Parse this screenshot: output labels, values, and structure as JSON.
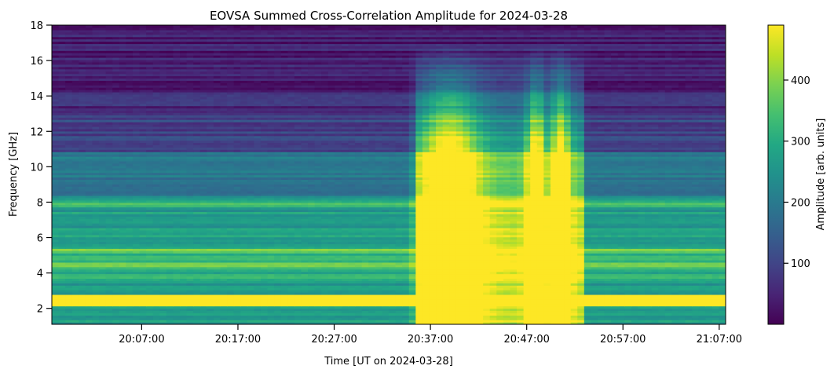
{
  "chart_data": {
    "type": "heatmap",
    "title": "EOVSA Summed Cross-Correlation Amplitude for 2024-03-28",
    "xlabel": "Time [UT on 2024-03-28]",
    "ylabel": "Frequency [GHz]",
    "x_ticks": [
      "20:07:00",
      "20:17:00",
      "20:27:00",
      "20:37:00",
      "20:47:00",
      "20:57:00",
      "21:07:00"
    ],
    "y_ticks": [
      2,
      4,
      6,
      8,
      10,
      12,
      14,
      16,
      18
    ],
    "xlim": [
      "19:57:40",
      "21:07:40"
    ],
    "ylim": [
      1.1,
      18
    ],
    "colorbar": {
      "label": "Amplitude [arb. units]",
      "ticks": [
        100,
        200,
        300,
        400
      ],
      "range": [
        0,
        490
      ],
      "colormap": "viridis"
    },
    "grid": false,
    "features": {
      "strong_bands_ghz": [
        [
          2.1,
          2.8
        ],
        [
          4.3,
          4.6
        ],
        [
          5.1,
          5.4
        ],
        [
          7.7,
          8.0
        ]
      ],
      "flare_start": "20:35:30",
      "flare_peaks": [
        "20:39:00",
        "20:48:00",
        "20:50:30"
      ],
      "flare_end": "20:53:00"
    }
  }
}
